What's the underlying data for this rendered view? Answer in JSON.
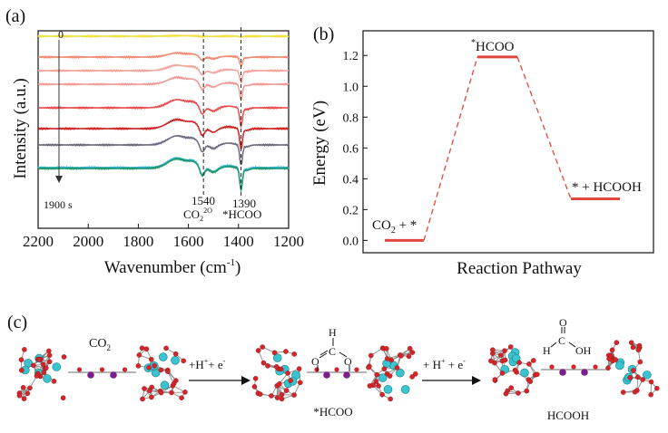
{
  "panel_a": {
    "label": "(a)",
    "xlabel": "Wavenumber (cm",
    "xlabel_sup": "-1",
    "xlabel_tail": ")",
    "ylabel": "Intensity (a.u.)",
    "time_start": "0",
    "time_end": "1900 s",
    "ann_1540": "1540",
    "ann_1390": "1390",
    "ann_co2": "CO",
    "ann_co2_sub": "2",
    "ann_co2_sup": "2O",
    "ann_hcoo": "*HCOO",
    "spectra_colors": [
      "#f2df3c",
      "#ef8b74",
      "#f2a39b",
      "#f09a98",
      "#e84b4b",
      "#cf2222",
      "#6b6b80",
      "#2fb3d6",
      "#1f9a70"
    ]
  },
  "panel_b": {
    "label": "(b)",
    "ylabel": "Energy (eV)",
    "xlabel": "Reaction Pathway",
    "state_start_main": "CO",
    "state_start_sub": "2",
    "state_start_tail": " + *",
    "state_mid": "HCOO",
    "state_mid_sup": "*",
    "state_end": "* + HCOOH",
    "line_color": "#e0473f"
  },
  "panel_c": {
    "label": "(c)",
    "co2": "CO",
    "co2_sub": "2",
    "step1": "+H",
    "step1_sup": "+",
    "step1_mid": "+ e",
    "step1_sup2": "-",
    "step2": "+ H",
    "step2_sup": "+",
    "step2_mid": " + e",
    "step2_sup2": "-",
    "hcoo_label": "*HCOO",
    "hcooh_label": "HCOOH",
    "h_atom": "H",
    "c_atom": "C",
    "o_atom": "O",
    "oh_group": "OH"
  },
  "chart_data": [
    {
      "type": "line",
      "title": "",
      "xlabel": "Wavenumber (cm-1)",
      "ylabel": "Intensity (a.u.)",
      "xlim": [
        2200,
        1200
      ],
      "x_ticks": [
        2200,
        2000,
        1800,
        1600,
        1400,
        1200
      ],
      "series_count": 9,
      "time_range": [
        "0",
        "1900 s"
      ],
      "annotations": [
        {
          "x": 1540,
          "text": "1540",
          "species": "CO2 2O"
        },
        {
          "x": 1390,
          "text": "1390",
          "species": "*HCOO"
        }
      ]
    },
    {
      "type": "line",
      "title": "",
      "xlabel": "Reaction Pathway",
      "ylabel": "Energy (eV)",
      "ylim": [
        -0.08,
        1.36
      ],
      "y_ticks": [
        0.0,
        0.2,
        0.4,
        0.6,
        0.8,
        1.0,
        1.2
      ],
      "y_tick_labels": [
        "0.0",
        "0.2",
        "0.4",
        "0.6",
        "0.8",
        "1.0",
        "1.2"
      ],
      "states": [
        {
          "name": "CO2 + *",
          "energy": 0.0
        },
        {
          "name": "*HCOO",
          "energy": 1.19
        },
        {
          "name": "* + HCOOH",
          "energy": 0.27
        }
      ]
    }
  ]
}
